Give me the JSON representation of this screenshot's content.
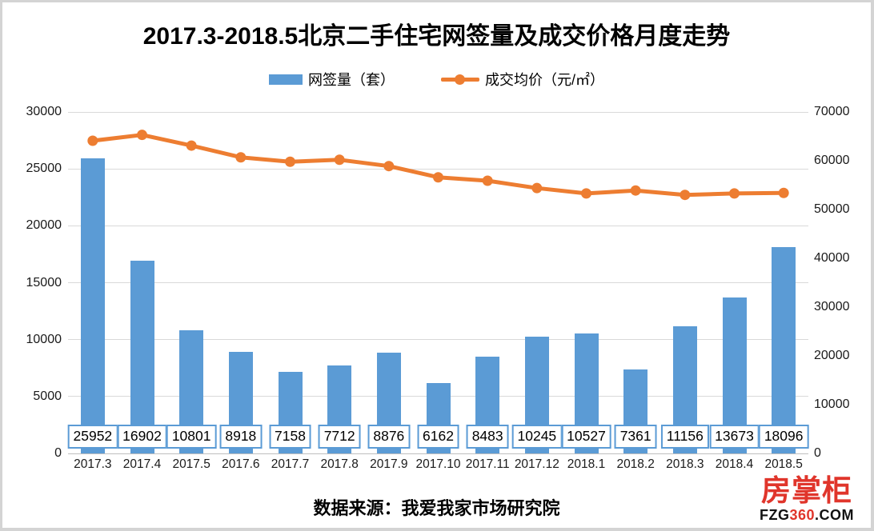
{
  "title": "2017.3-2018.5北京二手住宅网签量及成交价格月度走势",
  "legend": [
    {
      "label": "网签量（套）",
      "type": "bar",
      "color": "#5B9BD5"
    },
    {
      "label": "成交均价（元/㎡）",
      "type": "line",
      "color": "#ED7D31"
    }
  ],
  "source_note": "数据来源：我爱我家市场研究院",
  "logo": {
    "name": "房掌柜",
    "site_prefix": "FZG",
    "site_mid": "360",
    "site_suffix": ".COM",
    "red": "#e0352b"
  },
  "colors": {
    "bar": "#5B9BD5",
    "line": "#ED7D31",
    "gridline": "#D9D9D9",
    "axis_text": "#1A1A1A",
    "box_border": "#5B9BD5"
  },
  "chart_data": {
    "type": "bar",
    "subtype": "combo-bar-line",
    "title": "2017.3-2018.5北京二手住宅网签量及成交价格月度走势",
    "categories": [
      "2017.3",
      "2017.4",
      "2017.5",
      "2017.6",
      "2017.7",
      "2017.8",
      "2017.9",
      "2017.10",
      "2017.11",
      "2017.12",
      "2018.1",
      "2018.2",
      "2018.3",
      "2018.4",
      "2018.5"
    ],
    "series": [
      {
        "name": "网签量（套）",
        "type": "bar",
        "axis": "left",
        "color": "#5B9BD5",
        "values": [
          25952,
          16902,
          10801,
          8918,
          7158,
          7712,
          8876,
          6162,
          8483,
          10245,
          10527,
          7361,
          11156,
          13673,
          18096
        ]
      },
      {
        "name": "成交均价（元/㎡）",
        "type": "line",
        "axis": "right",
        "color": "#ED7D31",
        "values": [
          64100,
          65300,
          63100,
          60700,
          59800,
          60200,
          58900,
          56600,
          55900,
          54400,
          53300,
          53900,
          53000,
          53300,
          53400
        ]
      }
    ],
    "left_axis": {
      "min": 0,
      "max": 30000,
      "step": 5000,
      "ticks": [
        0,
        5000,
        10000,
        15000,
        20000,
        25000,
        30000
      ]
    },
    "right_axis": {
      "min": 0,
      "max": 70000,
      "step": 10000,
      "ticks": [
        0,
        10000,
        20000,
        30000,
        40000,
        50000,
        60000,
        70000
      ]
    },
    "grid": true,
    "legend_position": "top",
    "data_labels": "bar values shown in boxed labels above x-axis",
    "xlabel": "",
    "ylabel_left": "网签量（套）",
    "ylabel_right": "成交均价（元/㎡）"
  }
}
